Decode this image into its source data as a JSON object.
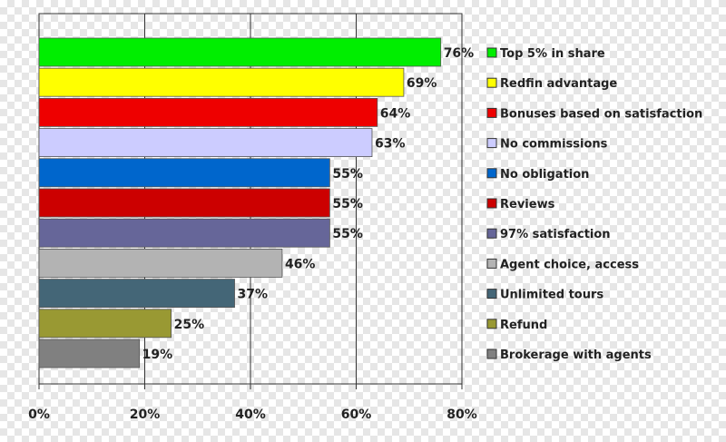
{
  "chart_data": {
    "type": "bar",
    "orientation": "horizontal",
    "xlim": [
      0,
      80
    ],
    "x_ticks": [
      0,
      20,
      40,
      60,
      80
    ],
    "x_tick_labels": [
      "0%",
      "20%",
      "40%",
      "60%",
      "80%"
    ],
    "grid": true,
    "legend_placement": "right",
    "categories": [
      "Top 5% in share",
      "Redfin advantage",
      "Bonuses based on satisfaction",
      "No commissions",
      "No obligation",
      "Reviews",
      "97% satisfaction",
      "Agent choice, access",
      "Unlimited tours",
      "Refund",
      "Brokerage with agents"
    ],
    "values": [
      76,
      69,
      64,
      63,
      55,
      55,
      55,
      46,
      37,
      25,
      19
    ],
    "value_labels": [
      "76%",
      "69%",
      "64%",
      "63%",
      "55%",
      "55%",
      "55%",
      "46%",
      "37%",
      "25%",
      "19%"
    ],
    "colors": [
      "#00ee00",
      "#ffff00",
      "#ee0000",
      "#ccccff",
      "#0066cc",
      "#cc0000",
      "#666699",
      "#b3b3b3",
      "#446677",
      "#999933",
      "#808080"
    ]
  }
}
